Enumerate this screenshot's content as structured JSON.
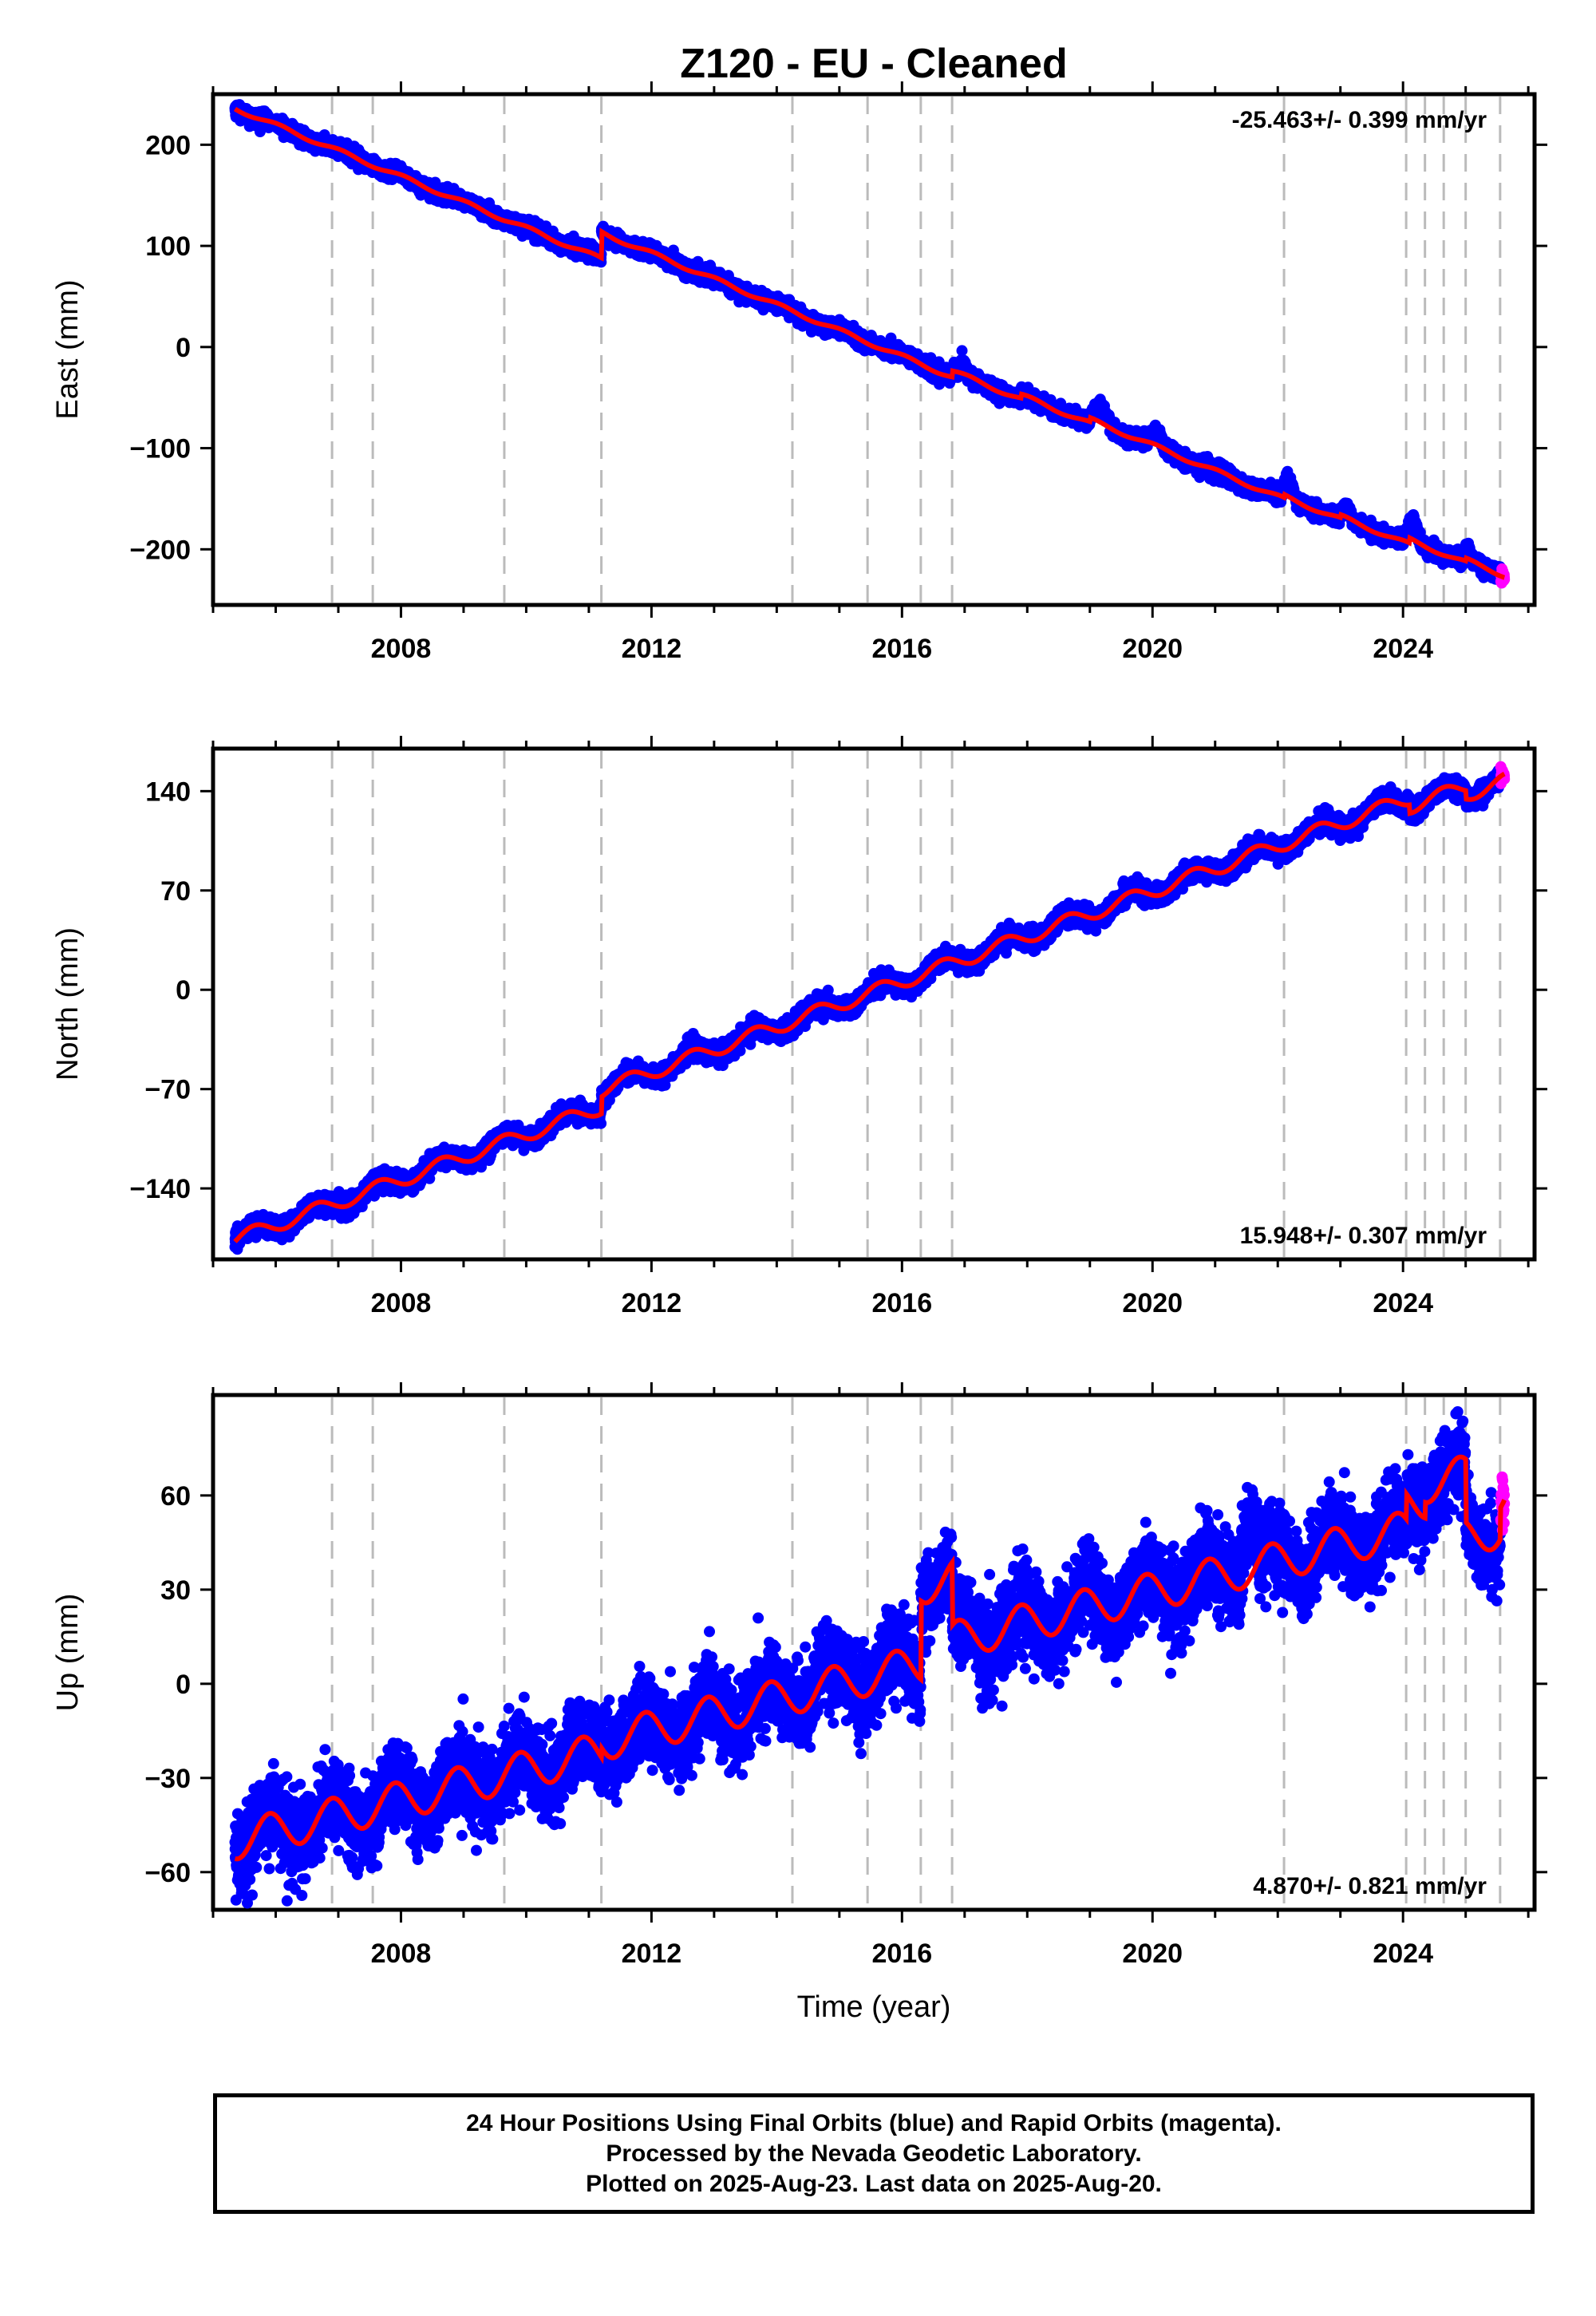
{
  "title": "Z120  - EU - Cleaned",
  "footer": {
    "line1": "24 Hour Positions Using Final Orbits (blue) and Rapid Orbits (magenta).",
    "line2": "Processed by the Nevada Geodetic Laboratory.",
    "line3": "Plotted on 2025-Aug-23. Last data on 2025-Aug-20."
  },
  "colors": {
    "final": "#0000ff",
    "rapid": "#ff00ff",
    "model": "#ff0000",
    "break": "#bbbbbb"
  },
  "chart_data": [
    {
      "type": "scatter",
      "ylabel": "East (mm)",
      "xlabel": "",
      "rate_label": "-25.463+/- 0.399 mm/yr",
      "rate_position": "top-right",
      "xlim": [
        2005.0,
        2026.1
      ],
      "ylim": [
        -255,
        250
      ],
      "xticks": [
        2008,
        2012,
        2016,
        2020,
        2024
      ],
      "yticks": [
        -200,
        -100,
        0,
        100,
        200
      ],
      "breaks": [
        2006.9,
        2007.55,
        2009.65,
        2011.2,
        2014.25,
        2015.45,
        2016.3,
        2016.8,
        2022.1,
        2024.05,
        2024.35,
        2024.65,
        2025.0,
        2025.55
      ],
      "model": {
        "start": 2005.35,
        "end": 2025.62,
        "intercept": 236,
        "rate": -25.463,
        "annual_amp": 2,
        "annual_phase": 0.2,
        "offsets": [
          [
            2011.2,
            26
          ],
          [
            2016.8,
            6
          ],
          [
            2017.9,
            4
          ],
          [
            2019.0,
            4
          ],
          [
            2022.1,
            3
          ],
          [
            2023.0,
            3
          ],
          [
            2024.1,
            5
          ],
          [
            2025.0,
            3
          ]
        ],
        "bumps": [
          [
            2016.9,
            2017.05,
            12
          ],
          [
            2017.9,
            18.15,
            18
          ],
          [
            2019.0,
            2019.35,
            14
          ],
          [
            2019.9,
            2020.2,
            12
          ],
          [
            2022.05,
            2022.3,
            16
          ],
          [
            2023.0,
            2023.2,
            10
          ],
          [
            2024.0,
            2024.3,
            16
          ],
          [
            2024.95,
            2025.1,
            10
          ]
        ]
      },
      "noise": 3.5,
      "rapid_from": 2025.5
    },
    {
      "type": "scatter",
      "ylabel": "North (mm)",
      "xlabel": "",
      "rate_label": "15.948+/- 0.307 mm/yr",
      "rate_position": "bottom-right",
      "xlim": [
        2005.0,
        2026.1
      ],
      "ylim": [
        -190,
        170
      ],
      "xticks": [
        2008,
        2012,
        2016,
        2020,
        2024
      ],
      "yticks": [
        -140,
        -70,
        0,
        70,
        140
      ],
      "breaks": [
        2006.9,
        2007.55,
        2009.65,
        2011.2,
        2014.25,
        2015.45,
        2016.3,
        2016.8,
        2022.1,
        2024.05,
        2024.35,
        2024.65,
        2025.0,
        2025.55
      ],
      "model": {
        "start": 2005.35,
        "end": 2025.62,
        "intercept": -176,
        "rate": 15.948,
        "annual_amp": 5,
        "annual_phase": 0.6,
        "offsets": [
          [
            2011.2,
            12
          ],
          [
            2024.1,
            -6
          ],
          [
            2025.0,
            -6
          ]
        ],
        "bumps": []
      },
      "noise": 3.2,
      "rapid_from": 2025.5
    },
    {
      "type": "scatter",
      "ylabel": "Up (mm)",
      "xlabel": "Time (year)",
      "rate_label": "4.870+/- 0.821 mm/yr",
      "rate_position": "bottom-right",
      "xlim": [
        2005.0,
        2026.1
      ],
      "ylim": [
        -72,
        92
      ],
      "xticks": [
        2008,
        2012,
        2016,
        2020,
        2024
      ],
      "yticks": [
        -60,
        -30,
        0,
        30,
        60
      ],
      "breaks": [
        2006.9,
        2007.55,
        2009.65,
        2011.2,
        2014.25,
        2015.45,
        2016.3,
        2016.8,
        2022.1,
        2024.05,
        2024.35,
        2024.65,
        2025.0,
        2025.55
      ],
      "model": {
        "start": 2005.35,
        "end": 2025.62,
        "intercept": -50,
        "rate": 4.87,
        "annual_amp": 6,
        "annual_phase": 0.35,
        "offsets": [
          [
            2011.2,
            3
          ],
          [
            2016.3,
            25
          ],
          [
            2016.8,
            -20
          ],
          [
            2024.05,
            8
          ],
          [
            2024.35,
            5
          ],
          [
            2025.0,
            -20
          ],
          [
            2025.55,
            10
          ]
        ],
        "bumps": [
          [
            2017.2,
            17.6,
            52
          ],
          [
            2021.4,
            2021.7,
            20
          ],
          [
            2014.6,
            2014.9,
            6
          ]
        ]
      },
      "noise": 6.5,
      "rapid_from": 2025.5
    }
  ]
}
